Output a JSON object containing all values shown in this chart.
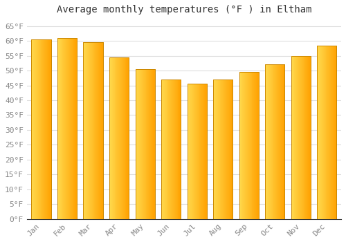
{
  "title": "Average monthly temperatures (°F ) in Eltham",
  "months": [
    "Jan",
    "Feb",
    "Mar",
    "Apr",
    "May",
    "Jun",
    "Jul",
    "Aug",
    "Sep",
    "Oct",
    "Nov",
    "Dec"
  ],
  "values": [
    60.5,
    61.0,
    59.5,
    54.5,
    50.5,
    47.0,
    45.5,
    47.0,
    49.5,
    52.0,
    55.0,
    58.5
  ],
  "bar_color_left": "#FFD84D",
  "bar_color_right": "#FFA000",
  "bar_edge_color": "#CC8800",
  "background_color": "#FFFFFF",
  "grid_color": "#DDDDDD",
  "ylim": [
    0,
    67
  ],
  "ytick_step": 5,
  "title_fontsize": 10,
  "tick_fontsize": 8,
  "font_family": "monospace"
}
